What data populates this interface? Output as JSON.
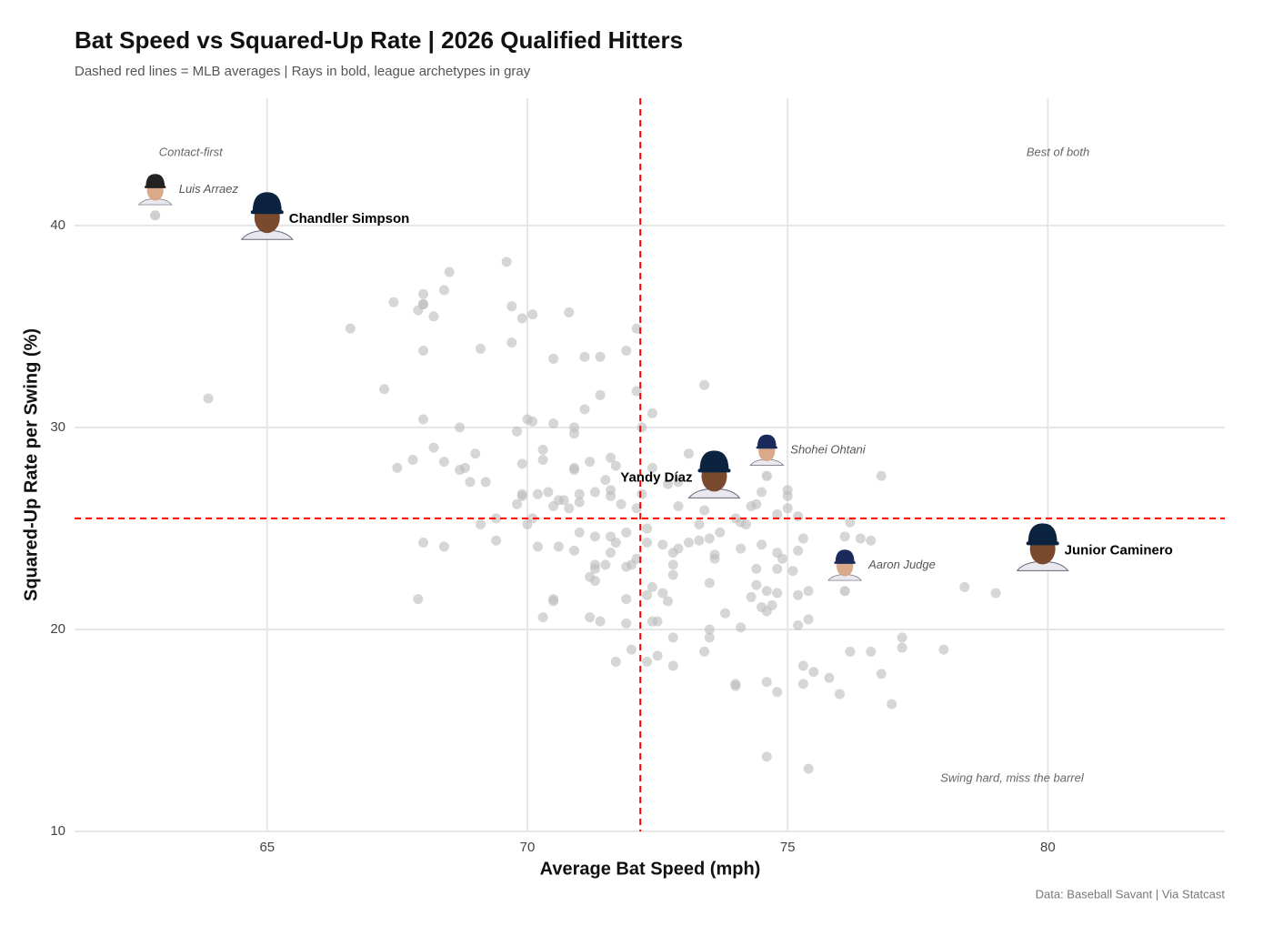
{
  "chart_data": {
    "type": "scatter",
    "title": "Bat Speed vs Squared-Up Rate | 2026 Qualified Hitters",
    "subtitle": "Dashed red lines = MLB averages | Rays in bold, league archetypes in gray",
    "x_label": "Average Bat Speed (mph)",
    "y_label": "Squared-Up Rate per Swing (%)",
    "source": "Data: Baseball Savant | Via Statcast",
    "xlim": [
      61.3,
      83.4
    ],
    "ylim": [
      10,
      46.3
    ],
    "xticks": [
      65,
      70,
      75,
      80
    ],
    "yticks": [
      10,
      20,
      30,
      40
    ],
    "grid": true,
    "mlb_average": {
      "x": 72.17,
      "y": 25.5,
      "color": "#ff0000"
    },
    "quadrant_labels": {
      "top_left": "Contact-first",
      "top_right": "Best of both",
      "bottom_right": "Swing hard, miss the barrel"
    },
    "series": [
      {
        "color": "#bbbbbb",
        "x": [
          63.87,
          66.6,
          67.25,
          67.43,
          67.5,
          67.9,
          68.0,
          68.0,
          68.2,
          68.4,
          68.5,
          68.0,
          68.0,
          67.8,
          68.2,
          68.4,
          68.7,
          68.8,
          68.7,
          68.9,
          69.0,
          69.2,
          69.1,
          69.6,
          69.7,
          69.9,
          70.1,
          69.7,
          69.8,
          70.0,
          70.1,
          69.9,
          70.3,
          70.3,
          70.5,
          70.5,
          70.8,
          71.1,
          71.4,
          71.4,
          71.1,
          70.9,
          70.9,
          71.2,
          70.9,
          70.9,
          71.6,
          71.7,
          71.5,
          71.6,
          71.6,
          71.3,
          71.0,
          71.0,
          70.6,
          70.7,
          70.8,
          70.5,
          70.2,
          69.9,
          69.8,
          69.4,
          69.1,
          70.0,
          70.1,
          70.4,
          69.9,
          69.4,
          68.0,
          68.4,
          67.9,
          70.2,
          70.6,
          70.9,
          71.0,
          71.3,
          71.6,
          71.7,
          71.6,
          71.3,
          71.3,
          71.5,
          71.2,
          71.3,
          70.5,
          70.5,
          70.3,
          71.2,
          71.4,
          71.9,
          71.7,
          72.0,
          71.9,
          71.9,
          72.0,
          71.9,
          72.1,
          72.3,
          72.3,
          72.1,
          71.8,
          72.1,
          71.9,
          72.1,
          72.2,
          72.4,
          72.2,
          72.4,
          72.7,
          72.9,
          73.1,
          72.9,
          72.6,
          72.8,
          72.8,
          72.9,
          72.8,
          72.4,
          72.6,
          72.7,
          72.3,
          72.4,
          72.5,
          72.5,
          72.3,
          72.8,
          72.8,
          73.3,
          73.3,
          73.4,
          73.5,
          73.6,
          73.6,
          73.7,
          73.5,
          73.1,
          73.8,
          73.5,
          73.5,
          73.4,
          73.4,
          74.1,
          74.0,
          74.2,
          74.3,
          74.4,
          74.5,
          74.1,
          74.4,
          74.5,
          74.4,
          74.3,
          74.5,
          74.6,
          74.6,
          74.7,
          74.8,
          74.8,
          74.8,
          74.9,
          74.6,
          74.8,
          74.6,
          74.0,
          74.1,
          74.0,
          74.8,
          75.0,
          75.0,
          75.0,
          75.2,
          75.2,
          75.1,
          75.2,
          75.2,
          75.4,
          75.4,
          75.3,
          75.3,
          75.5,
          75.3,
          75.8,
          76.0,
          76.2,
          76.1,
          76.2,
          76.4,
          76.6,
          76.6,
          76.8,
          76.8,
          77.0,
          77.2,
          77.2,
          78.0,
          78.4,
          79.0,
          75.4,
          68.0
        ],
        "values": [
          31.44,
          34.9,
          31.9,
          36.2,
          28.0,
          35.8,
          36.1,
          36.6,
          35.5,
          36.8,
          37.7,
          33.8,
          30.4,
          28.4,
          29.0,
          28.3,
          30.0,
          28.0,
          27.9,
          27.3,
          28.7,
          27.3,
          33.9,
          38.2,
          36.0,
          35.4,
          35.6,
          34.2,
          29.8,
          30.4,
          30.3,
          28.2,
          28.9,
          28.4,
          33.4,
          30.2,
          35.7,
          33.5,
          33.5,
          31.6,
          30.9,
          30.0,
          29.7,
          28.3,
          27.9,
          28.0,
          28.5,
          28.1,
          27.4,
          26.9,
          26.6,
          26.8,
          26.7,
          26.3,
          26.4,
          26.4,
          26.0,
          26.1,
          26.7,
          26.6,
          26.2,
          25.5,
          25.2,
          25.2,
          25.5,
          26.8,
          26.7,
          24.4,
          24.3,
          24.1,
          21.5,
          24.1,
          24.1,
          23.9,
          24.8,
          24.6,
          24.6,
          24.3,
          23.8,
          23.2,
          23.0,
          23.2,
          22.6,
          22.4,
          21.4,
          21.5,
          20.6,
          20.6,
          20.4,
          20.3,
          18.4,
          19.0,
          21.5,
          23.1,
          23.2,
          24.8,
          23.5,
          24.3,
          25.0,
          26.0,
          26.2,
          31.8,
          33.8,
          34.9,
          30.0,
          30.7,
          26.7,
          28.0,
          27.2,
          27.3,
          28.7,
          26.1,
          24.2,
          23.8,
          23.2,
          24.0,
          22.7,
          22.1,
          21.8,
          21.4,
          21.7,
          20.4,
          20.4,
          18.7,
          18.4,
          19.6,
          18.2,
          25.2,
          24.4,
          25.9,
          24.5,
          23.7,
          23.5,
          24.8,
          22.3,
          24.3,
          20.8,
          20.0,
          19.6,
          18.9,
          32.1,
          25.3,
          25.5,
          25.2,
          26.1,
          26.2,
          26.8,
          24.0,
          23.0,
          24.2,
          22.2,
          21.6,
          21.1,
          20.9,
          21.9,
          21.2,
          21.8,
          23.0,
          23.8,
          23.5,
          17.4,
          16.9,
          13.7,
          17.3,
          20.1,
          17.2,
          25.7,
          26.0,
          26.6,
          26.9,
          25.6,
          23.9,
          22.9,
          21.7,
          20.2,
          20.5,
          21.9,
          24.5,
          18.2,
          17.9,
          17.3,
          17.6,
          16.8,
          18.9,
          24.6,
          25.3,
          24.5,
          24.4,
          18.9,
          27.6,
          17.8,
          16.3,
          19.6,
          19.1,
          19.0,
          22.1,
          21.8,
          13.1,
          36.1
        ]
      }
    ],
    "highlighted": [
      {
        "name": "Luis Arraez",
        "x": 62.85,
        "y": 40.5,
        "rays": false,
        "cap_color": "#222222"
      },
      {
        "name": "Chandler Simpson",
        "x": 65.0,
        "y": 40.3,
        "rays": true,
        "cap_color": "#0c2340"
      },
      {
        "name": "Yandy Díaz",
        "x": 73.59,
        "y": 27.5,
        "rays": true,
        "cap_color": "#0c2340"
      },
      {
        "name": "Shohei Ohtani",
        "x": 74.6,
        "y": 27.6,
        "rays": false,
        "cap_color": "#1a2a5a"
      },
      {
        "name": "Aaron Judge",
        "x": 76.1,
        "y": 21.9,
        "rays": false,
        "cap_color": "#1a2a5a"
      },
      {
        "name": "Junior Caminero",
        "x": 79.9,
        "y": 23.9,
        "rays": true,
        "cap_color": "#0c2340"
      }
    ]
  }
}
